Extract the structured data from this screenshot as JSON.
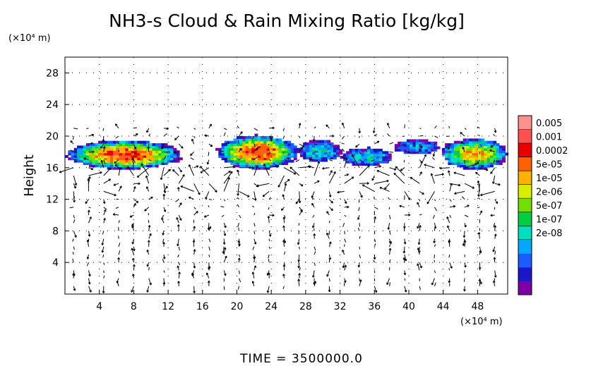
{
  "chart_data": {
    "type": "heatmap",
    "title": "NH3-s Cloud & Rain Mixing Ratio [kg/kg]",
    "xlabel": "",
    "ylabel": "Height",
    "x_unit": "(×10⁴ m)",
    "y_unit": "(×10⁴ m)",
    "xlim": [
      0,
      51.5
    ],
    "ylim": [
      0,
      30
    ],
    "x_ticks": [
      "4",
      "8",
      "12",
      "16",
      "20",
      "24",
      "28",
      "32",
      "36",
      "40",
      "44",
      "48"
    ],
    "y_ticks": [
      "4",
      "8",
      "12",
      "16",
      "20",
      "24",
      "28"
    ],
    "x_tick_values": [
      4,
      8,
      12,
      16,
      20,
      24,
      28,
      32,
      36,
      40,
      44,
      48
    ],
    "y_tick_values": [
      4,
      8,
      12,
      16,
      20,
      24,
      28
    ],
    "grid": "dotted",
    "colorbar": {
      "labels": [
        "0.005",
        "0.001",
        "0.0002",
        "5e-05",
        "1e-05",
        "2e-06",
        "5e-07",
        "1e-07",
        "2e-08"
      ],
      "colors": [
        "#7b00a8",
        "#1818c8",
        "#1a5cff",
        "#00a8ff",
        "#00e0c0",
        "#00d040",
        "#70e000",
        "#d8f000",
        "#ffb000",
        "#ff6000",
        "#e80000",
        "#ff5050",
        "#ff9090"
      ]
    },
    "cloud_regions": [
      {
        "x": [
          0,
          13.5
        ],
        "y": [
          15.5,
          19.5
        ],
        "peak": 10
      },
      {
        "x": [
          17.5,
          27
        ],
        "y": [
          15.5,
          20.2
        ],
        "peak": 10
      },
      {
        "x": [
          27,
          32
        ],
        "y": [
          16.5,
          19.5
        ],
        "peak": 4
      },
      {
        "x": [
          32,
          38
        ],
        "y": [
          16.0,
          18.5
        ],
        "peak": 4
      },
      {
        "x": [
          38,
          43.5
        ],
        "y": [
          17.5,
          19.5
        ],
        "peak": 3
      },
      {
        "x": [
          43.5,
          51.5
        ],
        "y": [
          15.5,
          19.8
        ],
        "peak": 8
      }
    ]
  },
  "time_label": "TIME  =  3500000.0"
}
